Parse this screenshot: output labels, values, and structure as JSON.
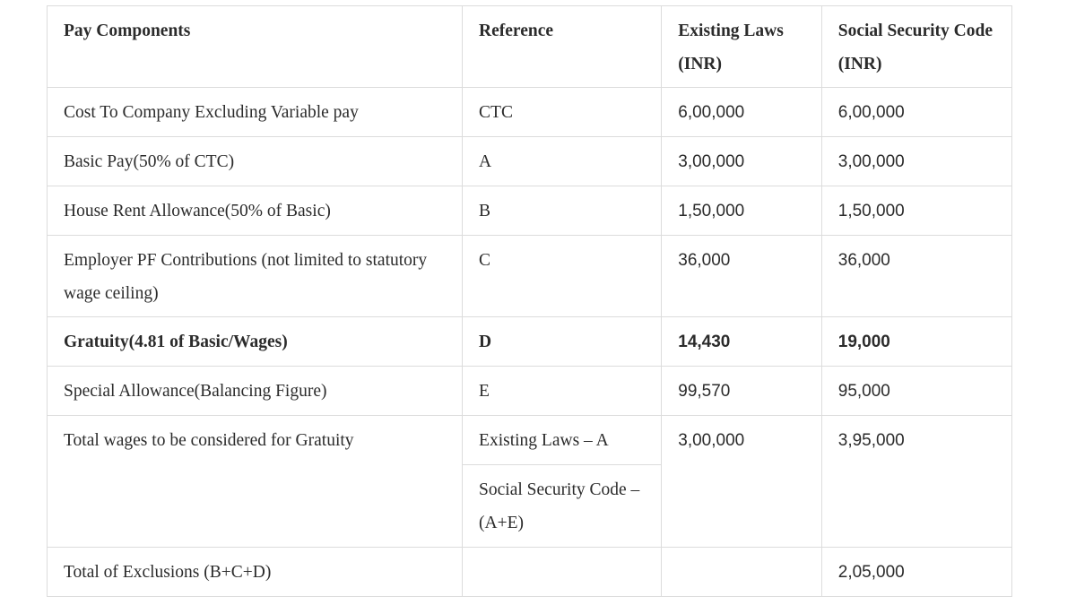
{
  "headers": [
    "Pay Components",
    "Reference",
    "Existing Laws (INR)",
    "Social Security Code (INR)"
  ],
  "rows": [
    {
      "component": "Cost To Company Excluding Variable pay",
      "reference": "CTC",
      "existing": "6,00,000",
      "ssc": "6,00,000",
      "bold": false
    },
    {
      "component": "Basic Pay(50% of CTC)",
      "reference": "A",
      "existing": "3,00,000",
      "ssc": "3,00,000",
      "bold": false
    },
    {
      "component": "House Rent Allowance(50% of Basic)",
      "reference": "B",
      "existing": "1,50,000",
      "ssc": "1,50,000",
      "bold": false
    },
    {
      "component": "Employer PF Contributions (not limited to statutory wage ceiling)",
      "reference": "C",
      "existing": "36,000",
      "ssc": "36,000",
      "bold": false
    },
    {
      "component": "Gratuity(4.81 of Basic/Wages)",
      "reference": "D",
      "existing": "14,430",
      "ssc": "19,000",
      "bold": true
    },
    {
      "component": "Special Allowance(Balancing Figure)",
      "reference": "E",
      "existing": "99,570",
      "ssc": "95,000",
      "bold": false
    }
  ],
  "total_wages": {
    "component": "Total wages to be considered for Gratuity",
    "reference_existing": "Existing Laws – A",
    "reference_ssc": "Social Security Code – (A+E)",
    "existing": "3,00,000",
    "ssc": "3,95,000"
  },
  "total_exclusions": {
    "component": "Total of Exclusions (B+C+D)",
    "reference": "",
    "existing": "",
    "ssc": "2,05,000"
  }
}
